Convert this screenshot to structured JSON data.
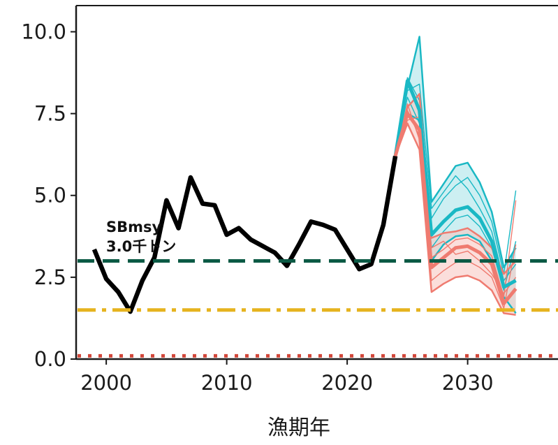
{
  "chart_data": {
    "type": "line",
    "title": "",
    "xlabel": "漁期年",
    "ylabel": "",
    "xlim": [
      1997.5,
      2037.5
    ],
    "ylim": [
      0,
      10.8
    ],
    "xticks": [
      2000,
      2010,
      2020,
      2030
    ],
    "xtick_labels": [
      "2000",
      "2010",
      "2020",
      "2030"
    ],
    "yticks": [
      0,
      2.5,
      5,
      7.5,
      10
    ],
    "ytick_labels": [
      "0.0",
      "2.5",
      "5.0",
      "7.5",
      "10.0"
    ],
    "grid": false,
    "legend": "none",
    "annotation": {
      "lines": [
        "SBmsy",
        "3.0千トン"
      ],
      "x": 1999.8,
      "y": 3.75
    },
    "reference_lines": [
      {
        "value": 3.0,
        "style": "dashed",
        "color": "#0b5a45"
      },
      {
        "value": 1.5,
        "style": "dashdot",
        "color": "#e6b31e"
      },
      {
        "value": 0.1,
        "style": "dotted",
        "color": "#d2473a"
      }
    ],
    "observed": {
      "color": "#000000",
      "x": [
        1999,
        2000,
        2001,
        2002,
        2003,
        2004,
        2005,
        2006,
        2007,
        2008,
        2009,
        2010,
        2011,
        2012,
        2013,
        2014,
        2015,
        2016,
        2017,
        2018,
        2019,
        2020,
        2021,
        2022,
        2023,
        2024
      ],
      "y": [
        3.35,
        2.45,
        2.05,
        1.45,
        2.4,
        3.1,
        4.85,
        4.0,
        5.55,
        4.75,
        4.7,
        3.8,
        4.0,
        3.65,
        3.45,
        3.25,
        2.85,
        3.5,
        4.2,
        4.1,
        3.95,
        3.35,
        2.75,
        2.9,
        4.1,
        6.2
      ]
    },
    "projection_x": [
      2024,
      2025,
      2026,
      2027,
      2028,
      2029,
      2030,
      2031,
      2032,
      2033,
      2034
    ],
    "scenarios": [
      {
        "color": "#1ab8c4",
        "fill": "#a4e2e7",
        "upper": [
          6.2,
          8.3,
          9.85,
          4.8,
          5.35,
          5.9,
          6.0,
          5.4,
          4.5,
          2.8,
          3.4
        ],
        "median": [
          6.2,
          8.5,
          7.6,
          3.8,
          4.2,
          4.55,
          4.65,
          4.3,
          3.6,
          2.2,
          2.4
        ],
        "lower": [
          6.2,
          7.5,
          7.3,
          3.0,
          3.5,
          3.75,
          3.8,
          3.6,
          3.0,
          1.9,
          1.4
        ],
        "samples": [
          [
            6.2,
            8.6,
            7.9,
            4.3,
            4.9,
            5.3,
            5.55,
            5.0,
            4.2,
            2.6,
            5.15
          ],
          [
            6.2,
            8.0,
            7.2,
            3.4,
            3.9,
            4.3,
            4.4,
            4.05,
            3.4,
            2.1,
            3.6
          ],
          [
            6.2,
            8.2,
            8.4,
            4.6,
            5.1,
            5.6,
            5.2,
            4.6,
            3.9,
            2.4,
            2.9
          ]
        ]
      },
      {
        "color": "#ef7b70",
        "fill": "#f8c3bd",
        "upper": [
          6.2,
          7.7,
          8.1,
          3.7,
          3.85,
          3.9,
          4.0,
          3.75,
          3.4,
          2.6,
          3.0
        ],
        "median": [
          6.2,
          7.5,
          7.0,
          2.8,
          3.1,
          3.4,
          3.45,
          3.25,
          2.9,
          1.7,
          2.15
        ],
        "lower": [
          6.2,
          7.2,
          6.4,
          2.05,
          2.3,
          2.5,
          2.55,
          2.4,
          2.1,
          1.4,
          1.35
        ],
        "samples": [
          [
            6.2,
            7.6,
            6.8,
            3.1,
            3.35,
            3.65,
            3.7,
            3.5,
            3.15,
            1.9,
            4.85
          ],
          [
            6.2,
            7.3,
            7.4,
            2.4,
            2.7,
            2.95,
            3.0,
            2.8,
            2.5,
            1.55,
            3.5
          ],
          [
            6.2,
            7.8,
            6.7,
            3.4,
            3.6,
            3.2,
            3.3,
            3.0,
            2.6,
            2.0,
            2.5
          ]
        ]
      }
    ]
  }
}
